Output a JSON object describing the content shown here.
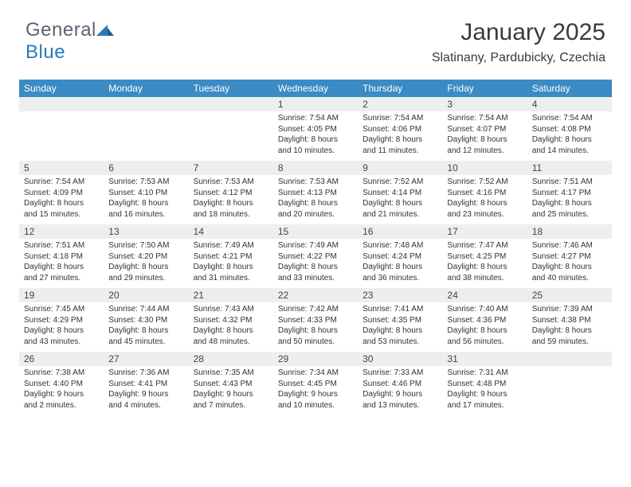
{
  "brand": {
    "name_part1": "General",
    "name_part2": "Blue"
  },
  "title": "January 2025",
  "location": "Slatinany, Pardubicky, Czechia",
  "colors": {
    "header_bg": "#3b8bc4",
    "header_text": "#ffffff",
    "daynum_bg": "#eceeef",
    "rule": "#2a6a9c",
    "text": "#333333",
    "brand_gray": "#5a6570",
    "brand_blue": "#2a7ab8"
  },
  "weekdays": [
    "Sunday",
    "Monday",
    "Tuesday",
    "Wednesday",
    "Thursday",
    "Friday",
    "Saturday"
  ],
  "weeks": [
    [
      null,
      null,
      null,
      {
        "n": "1",
        "sunrise": "7:54 AM",
        "sunset": "4:05 PM",
        "day_h": 8,
        "day_m": 10
      },
      {
        "n": "2",
        "sunrise": "7:54 AM",
        "sunset": "4:06 PM",
        "day_h": 8,
        "day_m": 11
      },
      {
        "n": "3",
        "sunrise": "7:54 AM",
        "sunset": "4:07 PM",
        "day_h": 8,
        "day_m": 12
      },
      {
        "n": "4",
        "sunrise": "7:54 AM",
        "sunset": "4:08 PM",
        "day_h": 8,
        "day_m": 14
      }
    ],
    [
      {
        "n": "5",
        "sunrise": "7:54 AM",
        "sunset": "4:09 PM",
        "day_h": 8,
        "day_m": 15
      },
      {
        "n": "6",
        "sunrise": "7:53 AM",
        "sunset": "4:10 PM",
        "day_h": 8,
        "day_m": 16
      },
      {
        "n": "7",
        "sunrise": "7:53 AM",
        "sunset": "4:12 PM",
        "day_h": 8,
        "day_m": 18
      },
      {
        "n": "8",
        "sunrise": "7:53 AM",
        "sunset": "4:13 PM",
        "day_h": 8,
        "day_m": 20
      },
      {
        "n": "9",
        "sunrise": "7:52 AM",
        "sunset": "4:14 PM",
        "day_h": 8,
        "day_m": 21
      },
      {
        "n": "10",
        "sunrise": "7:52 AM",
        "sunset": "4:16 PM",
        "day_h": 8,
        "day_m": 23
      },
      {
        "n": "11",
        "sunrise": "7:51 AM",
        "sunset": "4:17 PM",
        "day_h": 8,
        "day_m": 25
      }
    ],
    [
      {
        "n": "12",
        "sunrise": "7:51 AM",
        "sunset": "4:18 PM",
        "day_h": 8,
        "day_m": 27
      },
      {
        "n": "13",
        "sunrise": "7:50 AM",
        "sunset": "4:20 PM",
        "day_h": 8,
        "day_m": 29
      },
      {
        "n": "14",
        "sunrise": "7:49 AM",
        "sunset": "4:21 PM",
        "day_h": 8,
        "day_m": 31
      },
      {
        "n": "15",
        "sunrise": "7:49 AM",
        "sunset": "4:22 PM",
        "day_h": 8,
        "day_m": 33
      },
      {
        "n": "16",
        "sunrise": "7:48 AM",
        "sunset": "4:24 PM",
        "day_h": 8,
        "day_m": 36
      },
      {
        "n": "17",
        "sunrise": "7:47 AM",
        "sunset": "4:25 PM",
        "day_h": 8,
        "day_m": 38
      },
      {
        "n": "18",
        "sunrise": "7:46 AM",
        "sunset": "4:27 PM",
        "day_h": 8,
        "day_m": 40
      }
    ],
    [
      {
        "n": "19",
        "sunrise": "7:45 AM",
        "sunset": "4:29 PM",
        "day_h": 8,
        "day_m": 43
      },
      {
        "n": "20",
        "sunrise": "7:44 AM",
        "sunset": "4:30 PM",
        "day_h": 8,
        "day_m": 45
      },
      {
        "n": "21",
        "sunrise": "7:43 AM",
        "sunset": "4:32 PM",
        "day_h": 8,
        "day_m": 48
      },
      {
        "n": "22",
        "sunrise": "7:42 AM",
        "sunset": "4:33 PM",
        "day_h": 8,
        "day_m": 50
      },
      {
        "n": "23",
        "sunrise": "7:41 AM",
        "sunset": "4:35 PM",
        "day_h": 8,
        "day_m": 53
      },
      {
        "n": "24",
        "sunrise": "7:40 AM",
        "sunset": "4:36 PM",
        "day_h": 8,
        "day_m": 56
      },
      {
        "n": "25",
        "sunrise": "7:39 AM",
        "sunset": "4:38 PM",
        "day_h": 8,
        "day_m": 59
      }
    ],
    [
      {
        "n": "26",
        "sunrise": "7:38 AM",
        "sunset": "4:40 PM",
        "day_h": 9,
        "day_m": 2
      },
      {
        "n": "27",
        "sunrise": "7:36 AM",
        "sunset": "4:41 PM",
        "day_h": 9,
        "day_m": 4
      },
      {
        "n": "28",
        "sunrise": "7:35 AM",
        "sunset": "4:43 PM",
        "day_h": 9,
        "day_m": 7
      },
      {
        "n": "29",
        "sunrise": "7:34 AM",
        "sunset": "4:45 PM",
        "day_h": 9,
        "day_m": 10
      },
      {
        "n": "30",
        "sunrise": "7:33 AM",
        "sunset": "4:46 PM",
        "day_h": 9,
        "day_m": 13
      },
      {
        "n": "31",
        "sunrise": "7:31 AM",
        "sunset": "4:48 PM",
        "day_h": 9,
        "day_m": 17
      },
      null
    ]
  ],
  "labels": {
    "sunrise": "Sunrise:",
    "sunset": "Sunset:",
    "daylight": "Daylight:",
    "hours": "hours",
    "and": "and",
    "minutes": "minutes."
  }
}
